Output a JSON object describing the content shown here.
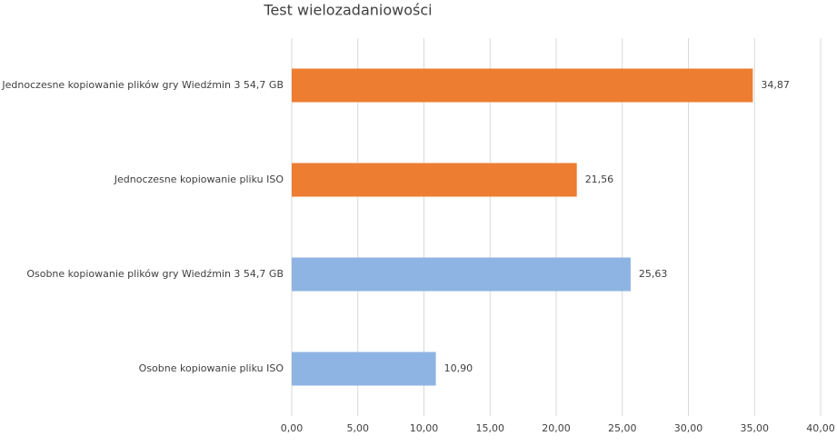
{
  "chart_data": {
    "type": "bar",
    "orientation": "horizontal",
    "title": "Test wielozadaniowości",
    "categories": [
      "Jednoczesne kopiowanie plików gry Wiedźmin 3 54,7 GB",
      "Jednoczesne kopiowanie pliku ISO",
      "Osobne kopiowanie plików gry Wiedźmin 3 54,7 GB",
      "Osobne kopiowanie pliku ISO"
    ],
    "values": [
      34.87,
      21.56,
      25.63,
      10.9
    ],
    "value_labels": [
      "34,87",
      "21,56",
      "25,63",
      "10,90"
    ],
    "colors": [
      "#ed7d31",
      "#ed7d31",
      "#8eb4e3",
      "#8eb4e3"
    ],
    "xlim": [
      0,
      40
    ],
    "xticks": [
      {
        "value": 0,
        "label": "0,00"
      },
      {
        "value": 5,
        "label": "5,00"
      },
      {
        "value": 10,
        "label": "10,00"
      },
      {
        "value": 15,
        "label": "15,00"
      },
      {
        "value": 20,
        "label": "20,00"
      },
      {
        "value": 25,
        "label": "25,00"
      },
      {
        "value": 30,
        "label": "30,00"
      },
      {
        "value": 35,
        "label": "35,00"
      },
      {
        "value": 40,
        "label": "40,00"
      }
    ],
    "grid": true
  }
}
